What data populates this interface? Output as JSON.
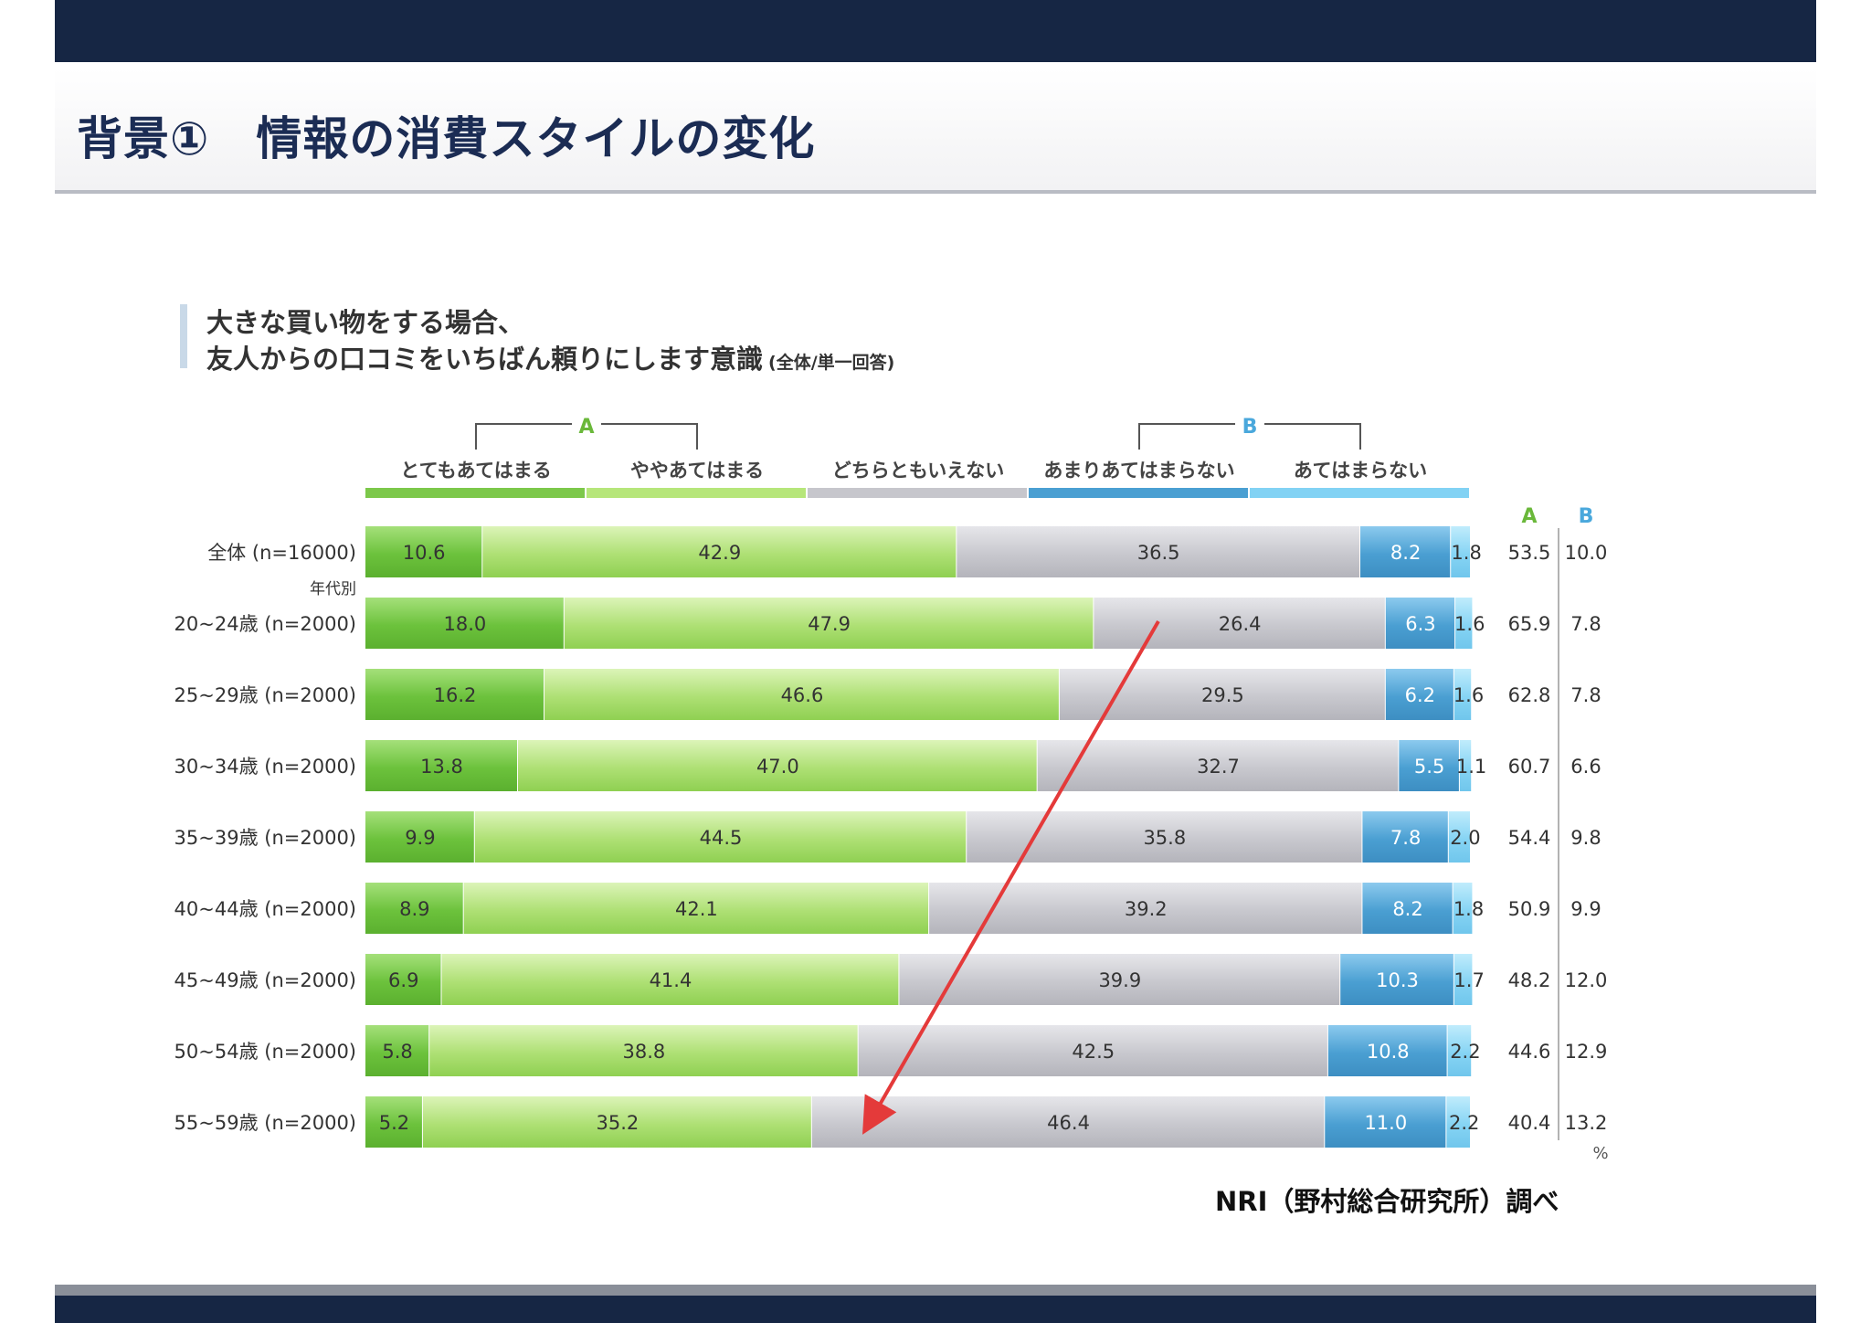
{
  "slide": {
    "title": "背景①　情報の消費スタイルの変化",
    "source": "NRI（野村総合研究所）調べ"
  },
  "chart_data": {
    "type": "bar",
    "orientation": "horizontal",
    "stacked": true,
    "title_line1": "大きな買い物をする場合、",
    "title_line2": "友人からの口コミをいちばん頼りにします意識",
    "title_note": "(全体/単一回答)",
    "group_a_label": "A",
    "group_b_label": "B",
    "legend": [
      {
        "name": "とてもあてはまる",
        "color": "#7cc84a"
      },
      {
        "name": "ややあてはまる",
        "color": "#b6e67a"
      },
      {
        "name": "どちらともいえない",
        "color": "#c6c6cc"
      },
      {
        "name": "あまりあてはまらない",
        "color": "#4a9fd2"
      },
      {
        "name": "あてはまらない",
        "color": "#82d2f4"
      }
    ],
    "group_note": "年代別",
    "unit": "%",
    "categories": [
      "全体 (n=16000)",
      "20~24歳 (n=2000)",
      "25~29歳 (n=2000)",
      "30~34歳 (n=2000)",
      "35~39歳 (n=2000)",
      "40~44歳 (n=2000)",
      "45~49歳 (n=2000)",
      "50~54歳 (n=2000)",
      "55~59歳 (n=2000)"
    ],
    "series": [
      {
        "name": "とてもあてはまる",
        "values": [
          10.6,
          18.0,
          16.2,
          13.8,
          9.9,
          8.9,
          6.9,
          5.8,
          5.2
        ]
      },
      {
        "name": "ややあてはまる",
        "values": [
          42.9,
          47.9,
          46.6,
          47.0,
          44.5,
          42.1,
          41.4,
          38.8,
          35.2
        ]
      },
      {
        "name": "どちらともいえない",
        "values": [
          36.5,
          26.4,
          29.5,
          32.7,
          35.8,
          39.2,
          39.9,
          42.5,
          46.4
        ]
      },
      {
        "name": "あまりあてはまらない",
        "values": [
          8.2,
          6.3,
          6.2,
          5.5,
          7.8,
          8.2,
          10.3,
          10.8,
          11.0
        ]
      },
      {
        "name": "あてはまらない",
        "values": [
          1.8,
          1.6,
          1.6,
          1.1,
          2.0,
          1.8,
          1.7,
          2.2,
          2.2
        ]
      }
    ],
    "totals": {
      "A": [
        53.5,
        65.9,
        62.8,
        60.7,
        54.4,
        50.9,
        48.2,
        44.6,
        40.4
      ],
      "B": [
        10.0,
        7.8,
        7.8,
        6.6,
        9.8,
        9.9,
        12.0,
        12.9,
        13.2
      ]
    },
    "xlim": [
      0,
      100
    ],
    "annotation": "red arrow indicating the declining trend of the agree share with age"
  }
}
